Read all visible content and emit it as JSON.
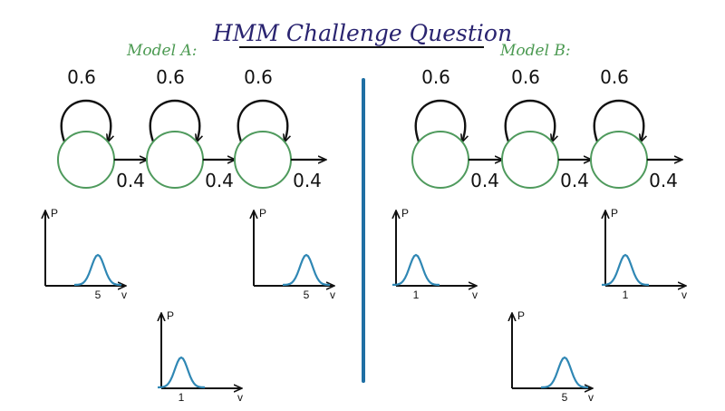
{
  "title": "HMM Challenge Question",
  "colors": {
    "ink": "#111111",
    "title": "#2a2470",
    "model_label": "#4c9a52",
    "state_circle": "#4f9a5d",
    "curve": "#2f87b4",
    "divider": "#1f6fa4"
  },
  "models": [
    {
      "label": "Model A:",
      "states": [
        {
          "self_prob": "0.6",
          "next_prob": "0.4"
        },
        {
          "self_prob": "0.6",
          "next_prob": "0.4"
        },
        {
          "self_prob": "0.6",
          "next_prob": "0.4"
        }
      ],
      "emissions": [
        {
          "y_label": "P",
          "x_label": "v",
          "peak_label": "5"
        },
        {
          "y_label": "P",
          "x_label": "v",
          "peak_label": "1"
        },
        {
          "y_label": "P",
          "x_label": "v",
          "peak_label": "5"
        }
      ]
    },
    {
      "label": "Model B:",
      "states": [
        {
          "self_prob": "0.6",
          "next_prob": "0.4"
        },
        {
          "self_prob": "0.6",
          "next_prob": "0.4"
        },
        {
          "self_prob": "0.6",
          "next_prob": "0.4"
        }
      ],
      "emissions": [
        {
          "y_label": "P",
          "x_label": "v",
          "peak_label": "1"
        },
        {
          "y_label": "P",
          "x_label": "v",
          "peak_label": "5"
        },
        {
          "y_label": "P",
          "x_label": "v",
          "peak_label": "1"
        }
      ]
    }
  ]
}
